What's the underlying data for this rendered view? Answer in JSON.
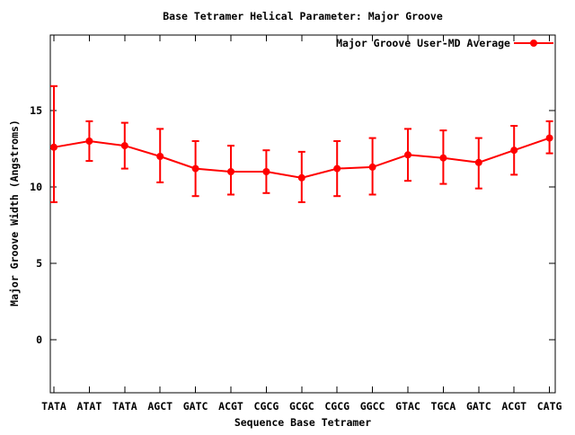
{
  "chart_data": {
    "type": "line",
    "title": "Base Tetramer Helical Parameter: Major Groove",
    "xlabel": "Sequence Base Tetramer",
    "ylabel": "Major Groove Width (Angstroms)",
    "categories": [
      "TATA",
      "ATAT",
      "TATA",
      "AGCT",
      "GATC",
      "ACGT",
      "CGCG",
      "GCGC",
      "CGCG",
      "GGCC",
      "GTAC",
      "TGCA",
      "GATC",
      "ACGT",
      "CATG"
    ],
    "series": [
      {
        "name": "Major Groove User-MD Average",
        "marker": "filled-circle",
        "error_bars": true,
        "values": [
          12.6,
          13.0,
          12.7,
          12.0,
          11.2,
          11.0,
          11.0,
          10.6,
          11.2,
          11.3,
          12.1,
          11.9,
          11.6,
          12.4,
          13.2
        ],
        "err_low": [
          9.0,
          11.7,
          11.2,
          10.3,
          9.4,
          9.5,
          9.6,
          9.0,
          9.4,
          9.5,
          10.4,
          10.2,
          9.9,
          10.8,
          12.2
        ],
        "err_high": [
          16.6,
          14.3,
          14.2,
          13.8,
          13.0,
          12.7,
          12.4,
          12.3,
          13.0,
          13.2,
          13.8,
          13.7,
          13.2,
          14.0,
          14.3
        ]
      }
    ],
    "yticks": [
      0,
      5,
      10,
      15
    ],
    "ylim": [
      -3.5,
      19.9
    ],
    "grid": false,
    "legend_position": "top-right-inside",
    "colors": {
      "series": "#ff0000",
      "axis": "#000000",
      "background": "#ffffff"
    }
  }
}
